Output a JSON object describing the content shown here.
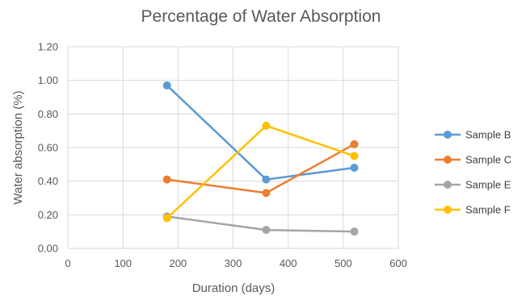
{
  "chart_data": {
    "type": "line",
    "title": "Percentage of Water Absorption",
    "xlabel": "Duration (days)",
    "ylabel": "Water absorption (%)",
    "xlim": [
      0,
      600
    ],
    "ylim": [
      0,
      1.2
    ],
    "x_ticks": [
      "0",
      "100",
      "200",
      "300",
      "400",
      "500",
      "600"
    ],
    "y_ticks": [
      "0.00",
      "0.20",
      "0.40",
      "0.60",
      "0.80",
      "1.00",
      "1.20"
    ],
    "grid": true,
    "legend_position": "right",
    "x": [
      180,
      360,
      520
    ],
    "series": [
      {
        "name": "Sample B",
        "color": "#5b9bd5",
        "values": [
          0.97,
          0.41,
          0.48
        ]
      },
      {
        "name": "Sample C",
        "color": "#ed7d31",
        "values": [
          0.41,
          0.33,
          0.62
        ]
      },
      {
        "name": "Sample E",
        "color": "#a5a5a5",
        "values": [
          0.19,
          0.11,
          0.1
        ]
      },
      {
        "name": "Sample F",
        "color": "#ffc000",
        "values": [
          0.18,
          0.73,
          0.55
        ]
      }
    ]
  }
}
